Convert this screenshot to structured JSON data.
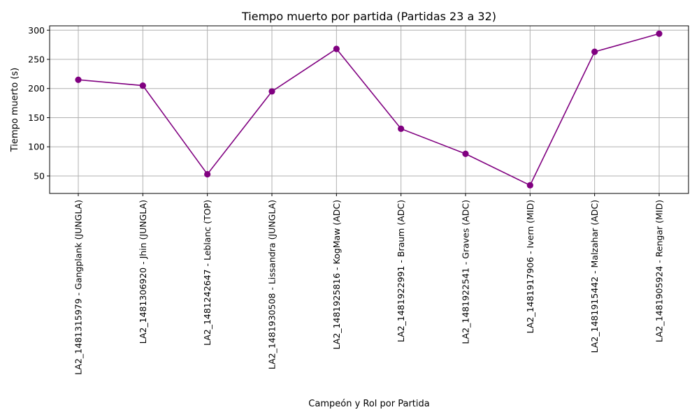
{
  "chart_data": {
    "type": "line",
    "title": "Tiempo muerto por partida (Partidas 23 a 32)",
    "xlabel": "Campeón y Rol por Partida",
    "ylabel": "Tiempo muerto (s)",
    "categories": [
      "LA2_1481315979 - Gangplank (JUNGLA)",
      "LA2_1481306920 - Jhin (JUNGLA)",
      "LA2_1481242647 - Leblanc (TOP)",
      "LA2_1481930508 - Lissandra (JUNGLA)",
      "LA2_1481925816 - KogMaw (ADC)",
      "LA2_1481922991 - Braum (ADC)",
      "LA2_1481922541 - Graves (ADC)",
      "LA2_1481917906 - Ivern (MID)",
      "LA2_1481915442 - Malzahar (ADC)",
      "LA2_1481905924 - Rengar (MID)"
    ],
    "values": [
      215,
      205,
      53,
      195,
      268,
      131,
      88,
      34,
      263,
      294
    ],
    "yticks": [
      50,
      100,
      150,
      200,
      250,
      300
    ],
    "ylim": [
      20,
      307.5
    ],
    "grid": true,
    "color": "#800080"
  }
}
